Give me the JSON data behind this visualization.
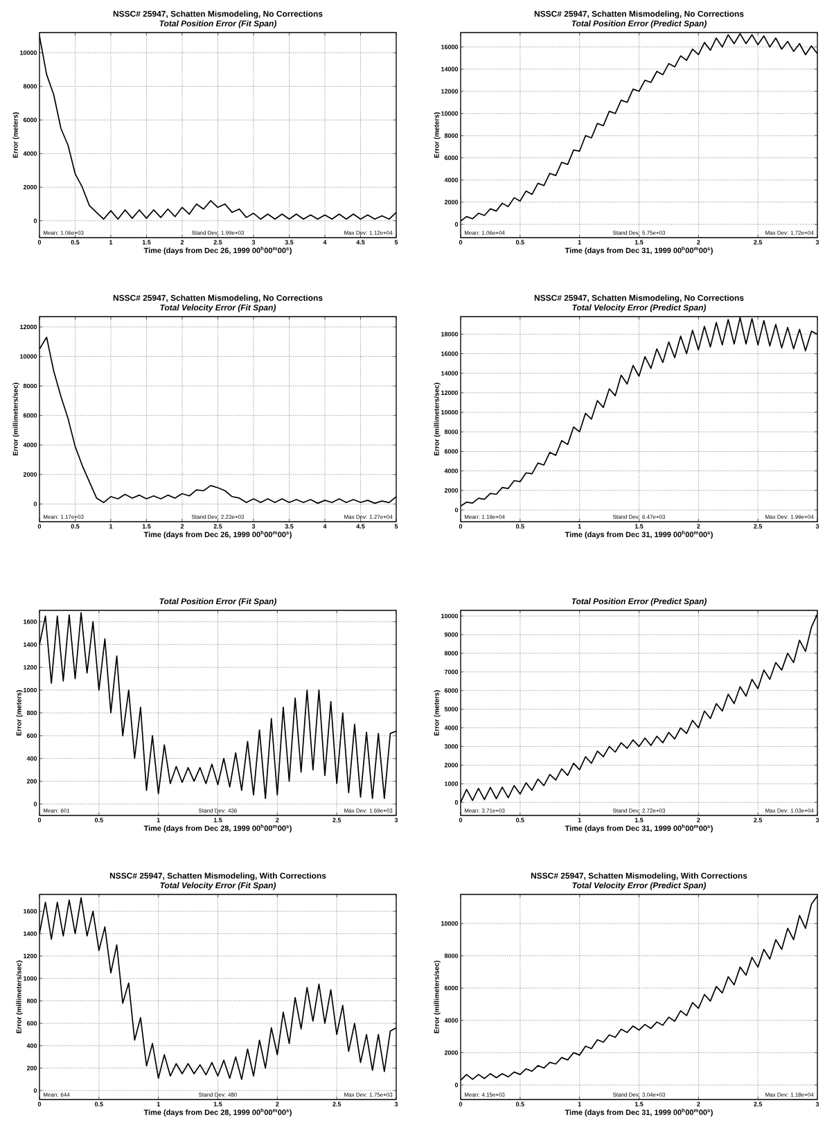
{
  "chart_data": [
    {
      "type": "line",
      "title": "NSSC# 25947, Schatten Mismodeling, No Corrections",
      "subtitle": "Total Position Error (Fit Span)",
      "xlabel": "Time (days from Dec 26, 1999  00$^{h}$00$^{m}$00$^{s}$)",
      "ylabel": "Error (meters)",
      "xlim": [
        0,
        5
      ],
      "ylim": [
        -1000,
        11200
      ],
      "xticks": [
        0,
        0.5,
        1,
        1.5,
        2,
        2.5,
        3,
        3.5,
        4,
        4.5,
        5
      ],
      "yticks": [
        0,
        2000,
        4000,
        6000,
        8000,
        10000
      ],
      "grid": true,
      "color": "#000000",
      "annotations": [
        "Mean: 1.06e+03",
        "Stand Dev: 1.99e+03",
        "Max Dev: 1.12e+04"
      ],
      "x": [
        0,
        0.1,
        0.2,
        0.3,
        0.4,
        0.5,
        0.6,
        0.7,
        0.8,
        0.9,
        1,
        1.1,
        1.2,
        1.3,
        1.4,
        1.5,
        1.6,
        1.7,
        1.8,
        1.9,
        2,
        2.1,
        2.2,
        2.3,
        2.4,
        2.5,
        2.6,
        2.7,
        2.8,
        2.9,
        3,
        3.1,
        3.2,
        3.3,
        3.4,
        3.5,
        3.6,
        3.7,
        3.8,
        3.9,
        4,
        4.1,
        4.2,
        4.3,
        4.4,
        4.5,
        4.6,
        4.7,
        4.8,
        4.9,
        5
      ],
      "values": [
        11000,
        8700,
        7500,
        5500,
        4500,
        2800,
        2000,
        900,
        500,
        100,
        600,
        100,
        650,
        150,
        650,
        150,
        650,
        200,
        700,
        250,
        800,
        400,
        1000,
        700,
        1200,
        800,
        1000,
        500,
        700,
        200,
        450,
        100,
        400,
        100,
        400,
        100,
        400,
        100,
        350,
        100,
        350,
        100,
        400,
        100,
        400,
        100,
        350,
        100,
        300,
        100,
        500
      ]
    },
    {
      "type": "line",
      "title": "NSSC# 25947, Schatten Mismodeling, No Corrections",
      "subtitle": "Total Position Error (Predict Span)",
      "xlabel": "Time (days from Dec 31, 1999  00$^{h}$00$^{m}$00$^{s}$)",
      "ylabel": "Error (meters)",
      "xlim": [
        0,
        3
      ],
      "ylim": [
        -1200,
        17300
      ],
      "xticks": [
        0,
        0.5,
        1,
        1.5,
        2,
        2.5,
        3
      ],
      "yticks": [
        0,
        2000,
        4000,
        6000,
        8000,
        10000,
        12000,
        14000,
        16000
      ],
      "grid": true,
      "color": "#000000",
      "annotations": [
        "Mean: 1.06e+04",
        "Stand Dev: 5.75e+03",
        "Max Dev: 1.72e+04"
      ],
      "x": [
        0,
        0.05,
        0.1,
        0.15,
        0.2,
        0.25,
        0.3,
        0.35,
        0.4,
        0.45,
        0.5,
        0.55,
        0.6,
        0.65,
        0.7,
        0.75,
        0.8,
        0.85,
        0.9,
        0.95,
        1,
        1.05,
        1.1,
        1.15,
        1.2,
        1.25,
        1.3,
        1.35,
        1.4,
        1.45,
        1.5,
        1.55,
        1.6,
        1.65,
        1.7,
        1.75,
        1.8,
        1.85,
        1.9,
        1.95,
        2,
        2.05,
        2.1,
        2.15,
        2.2,
        2.25,
        2.3,
        2.35,
        2.4,
        2.45,
        2.5,
        2.55,
        2.6,
        2.65,
        2.7,
        2.75,
        2.8,
        2.85,
        2.9,
        2.95,
        3
      ],
      "values": [
        300,
        700,
        500,
        1000,
        800,
        1400,
        1200,
        1900,
        1600,
        2400,
        2100,
        3000,
        2700,
        3700,
        3500,
        4600,
        4400,
        5600,
        5400,
        6700,
        6600,
        8000,
        7800,
        9100,
        8900,
        10200,
        10000,
        11200,
        11000,
        12200,
        12000,
        13000,
        12800,
        13800,
        13500,
        14500,
        14200,
        15200,
        14800,
        15800,
        15300,
        16400,
        15700,
        16800,
        16000,
        17100,
        16300,
        17200,
        16300,
        17100,
        16200,
        17000,
        16000,
        16800,
        15800,
        16500,
        15600,
        16300,
        15300,
        16100,
        15400
      ]
    },
    {
      "type": "line",
      "title": "NSSC# 25947, Schatten Mismodeling, No Corrections",
      "subtitle": "Total Velocity Error (Fit Span)",
      "xlabel": "Time (days from Dec 26, 1999  00$^{h}$00$^{m}$00$^{s}$)",
      "ylabel": "Error (millimeters/sec)",
      "xlim": [
        0,
        5
      ],
      "ylim": [
        -1200,
        12700
      ],
      "xticks": [
        0,
        0.5,
        1,
        1.5,
        2,
        2.5,
        3,
        3.5,
        4,
        4.5,
        5
      ],
      "yticks": [
        0,
        2000,
        4000,
        6000,
        8000,
        10000,
        12000
      ],
      "grid": true,
      "color": "#000000",
      "annotations": [
        "Mean: 1.17e+03",
        "Stand Dev: 2.23e+03",
        "Max Dev: 1.27e+04"
      ],
      "x": [
        0,
        0.1,
        0.2,
        0.3,
        0.4,
        0.5,
        0.6,
        0.7,
        0.8,
        0.9,
        1,
        1.1,
        1.2,
        1.3,
        1.4,
        1.5,
        1.6,
        1.7,
        1.8,
        1.9,
        2,
        2.1,
        2.2,
        2.3,
        2.4,
        2.5,
        2.6,
        2.7,
        2.8,
        2.9,
        3,
        3.1,
        3.2,
        3.3,
        3.4,
        3.5,
        3.6,
        3.7,
        3.8,
        3.9,
        4,
        4.1,
        4.2,
        4.3,
        4.4,
        4.5,
        4.6,
        4.7,
        4.8,
        4.9,
        5
      ],
      "values": [
        10500,
        11300,
        9000,
        7300,
        5800,
        3900,
        2600,
        1500,
        400,
        100,
        500,
        350,
        650,
        400,
        600,
        350,
        550,
        350,
        600,
        400,
        700,
        550,
        950,
        900,
        1250,
        1100,
        900,
        500,
        400,
        100,
        350,
        100,
        350,
        100,
        350,
        100,
        300,
        100,
        300,
        50,
        250,
        100,
        350,
        100,
        300,
        100,
        250,
        50,
        200,
        100,
        500
      ]
    },
    {
      "type": "line",
      "title": "NSSC# 25947, Schatten Mismodeling, No Corrections",
      "subtitle": "Total Velocity Error (Predict Span)",
      "xlabel": "Time (days from Dec 31, 1999  00$^{h}$00$^{m}$00$^{s}$)",
      "ylabel": "Error (millimeters/sec)",
      "xlim": [
        0,
        3
      ],
      "ylim": [
        -1200,
        19800
      ],
      "xticks": [
        0,
        0.5,
        1,
        1.5,
        2,
        2.5,
        3
      ],
      "yticks": [
        0,
        2000,
        4000,
        6000,
        8000,
        10000,
        12000,
        14000,
        16000,
        18000
      ],
      "grid": true,
      "color": "#000000",
      "annotations": [
        "Mean: 1.19e+04",
        "Stand Dev: 6.47e+03",
        "Max Dev: 1.99e+04"
      ],
      "x": [
        0,
        0.05,
        0.1,
        0.15,
        0.2,
        0.25,
        0.3,
        0.35,
        0.4,
        0.45,
        0.5,
        0.55,
        0.6,
        0.65,
        0.7,
        0.75,
        0.8,
        0.85,
        0.9,
        0.95,
        1,
        1.05,
        1.1,
        1.15,
        1.2,
        1.25,
        1.3,
        1.35,
        1.4,
        1.45,
        1.5,
        1.55,
        1.6,
        1.65,
        1.7,
        1.75,
        1.8,
        1.85,
        1.9,
        1.95,
        2,
        2.05,
        2.1,
        2.15,
        2.2,
        2.25,
        2.3,
        2.35,
        2.4,
        2.45,
        2.5,
        2.55,
        2.6,
        2.65,
        2.7,
        2.75,
        2.8,
        2.85,
        2.9,
        2.95,
        3
      ],
      "values": [
        400,
        800,
        700,
        1200,
        1100,
        1700,
        1600,
        2300,
        2200,
        3000,
        2900,
        3800,
        3700,
        4800,
        4600,
        5900,
        5600,
        7100,
        6700,
        8500,
        8000,
        9900,
        9300,
        11200,
        10500,
        12400,
        11700,
        13800,
        12900,
        14800,
        13700,
        15700,
        14500,
        16500,
        15100,
        17200,
        15600,
        17800,
        16000,
        18400,
        16400,
        18800,
        16700,
        19200,
        16900,
        19500,
        17000,
        19700,
        17000,
        19600,
        16900,
        19400,
        16800,
        19000,
        16600,
        18700,
        16500,
        18500,
        16300,
        18300,
        18000
      ]
    },
    {
      "type": "line",
      "subtitle": "Total Position Error (Fit Span)",
      "xlabel": "Time (days from Dec 28, 1999  00$^{h}$00$^{m}$00$^{s}$)",
      "ylabel": "Error (meters)",
      "xlim": [
        0,
        3
      ],
      "ylim": [
        -100,
        1700
      ],
      "xticks": [
        0,
        0.5,
        1,
        1.5,
        2,
        2.5,
        3
      ],
      "yticks": [
        0,
        200,
        400,
        600,
        800,
        1000,
        1200,
        1400,
        1600
      ],
      "grid": true,
      "color": "#000000",
      "annotations": [
        "Mean: 601",
        "Stand Dev: 436",
        "Max Dev: 1.69e+03"
      ],
      "x": [
        0,
        0.05,
        0.1,
        0.15,
        0.2,
        0.25,
        0.3,
        0.35,
        0.4,
        0.45,
        0.5,
        0.55,
        0.6,
        0.65,
        0.7,
        0.75,
        0.8,
        0.85,
        0.9,
        0.95,
        1,
        1.05,
        1.1,
        1.15,
        1.2,
        1.25,
        1.3,
        1.35,
        1.4,
        1.45,
        1.5,
        1.55,
        1.6,
        1.65,
        1.7,
        1.75,
        1.8,
        1.85,
        1.9,
        1.95,
        2,
        2.05,
        2.1,
        2.15,
        2.2,
        2.25,
        2.3,
        2.35,
        2.4,
        2.45,
        2.5,
        2.55,
        2.6,
        2.65,
        2.7,
        2.75,
        2.8,
        2.85,
        2.9,
        2.95,
        3
      ],
      "values": [
        1400,
        1650,
        1060,
        1650,
        1080,
        1660,
        1100,
        1680,
        1150,
        1600,
        1000,
        1450,
        800,
        1300,
        600,
        1000,
        400,
        850,
        120,
        600,
        90,
        520,
        180,
        330,
        190,
        320,
        200,
        320,
        180,
        350,
        170,
        400,
        150,
        450,
        120,
        550,
        80,
        650,
        50,
        750,
        80,
        850,
        200,
        930,
        280,
        1000,
        300,
        1000,
        250,
        900,
        180,
        800,
        100,
        700,
        60,
        630,
        50,
        620,
        50,
        620,
        640
      ]
    },
    {
      "type": "line",
      "subtitle": "Total Position Error (Predict Span)",
      "xlabel": "Time (days from Dec 31, 1999  00$^{h}$00$^{m}$00$^{s}$)",
      "ylabel": "Error (meters)",
      "xlim": [
        0,
        3
      ],
      "ylim": [
        -700,
        10300
      ],
      "xticks": [
        0,
        0.5,
        1,
        1.5,
        2,
        2.5,
        3
      ],
      "yticks": [
        0,
        1000,
        2000,
        3000,
        4000,
        5000,
        6000,
        7000,
        8000,
        9000,
        10000
      ],
      "grid": true,
      "color": "#000000",
      "annotations": [
        "Mean: 3.71e+03",
        "Stand Dev: 2.72e+03",
        "Max Dev: 1.03e+04"
      ],
      "x": [
        0,
        0.05,
        0.1,
        0.15,
        0.2,
        0.25,
        0.3,
        0.35,
        0.4,
        0.45,
        0.5,
        0.55,
        0.6,
        0.65,
        0.7,
        0.75,
        0.8,
        0.85,
        0.9,
        0.95,
        1,
        1.05,
        1.1,
        1.15,
        1.2,
        1.25,
        1.3,
        1.35,
        1.4,
        1.45,
        1.5,
        1.55,
        1.6,
        1.65,
        1.7,
        1.75,
        1.8,
        1.85,
        1.9,
        1.95,
        2,
        2.05,
        2.1,
        2.15,
        2.2,
        2.25,
        2.3,
        2.35,
        2.4,
        2.45,
        2.5,
        2.55,
        2.6,
        2.65,
        2.7,
        2.75,
        2.8,
        2.85,
        2.9,
        2.95,
        3
      ],
      "values": [
        0,
        700,
        100,
        750,
        150,
        800,
        200,
        820,
        250,
        900,
        450,
        1050,
        650,
        1250,
        900,
        1500,
        1200,
        1800,
        1450,
        2100,
        1750,
        2450,
        2100,
        2750,
        2450,
        3000,
        2700,
        3200,
        2900,
        3350,
        3000,
        3450,
        3050,
        3550,
        3200,
        3750,
        3400,
        4000,
        3700,
        4400,
        4000,
        4900,
        4500,
        5300,
        4900,
        5800,
        5300,
        6200,
        5700,
        6600,
        6100,
        7100,
        6600,
        7500,
        7100,
        8000,
        7500,
        8700,
        8100,
        9400,
        10100
      ]
    },
    {
      "type": "line",
      "title": "NSSC# 25947, Schatten Mismodeling, With Corrections",
      "subtitle": "Total Velocity Error (Fit Span)",
      "xlabel": "Time (days from Dec 28, 1999  00$^{h}$00$^{m}$00$^{s}$)",
      "ylabel": "Error (millimeters/sec)",
      "xlim": [
        0,
        3
      ],
      "ylim": [
        -80,
        1750
      ],
      "xticks": [
        0,
        0.5,
        1,
        1.5,
        2,
        2.5,
        3
      ],
      "yticks": [
        0,
        200,
        400,
        600,
        800,
        1000,
        1200,
        1400,
        1600
      ],
      "grid": true,
      "color": "#000000",
      "annotations": [
        "Mean: 644",
        "Stand Dev: 480",
        "Max Dev: 1.75e+03"
      ],
      "x": [
        0,
        0.05,
        0.1,
        0.15,
        0.2,
        0.25,
        0.3,
        0.35,
        0.4,
        0.45,
        0.5,
        0.55,
        0.6,
        0.65,
        0.7,
        0.75,
        0.8,
        0.85,
        0.9,
        0.95,
        1,
        1.05,
        1.1,
        1.15,
        1.2,
        1.25,
        1.3,
        1.35,
        1.4,
        1.45,
        1.5,
        1.55,
        1.6,
        1.65,
        1.7,
        1.75,
        1.8,
        1.85,
        1.9,
        1.95,
        2,
        2.05,
        2.1,
        2.15,
        2.2,
        2.25,
        2.3,
        2.35,
        2.4,
        2.45,
        2.5,
        2.55,
        2.6,
        2.65,
        2.7,
        2.75,
        2.8,
        2.85,
        2.9,
        2.95,
        3
      ],
      "values": [
        1400,
        1680,
        1350,
        1680,
        1380,
        1700,
        1400,
        1720,
        1380,
        1600,
        1250,
        1460,
        1050,
        1300,
        780,
        960,
        450,
        650,
        220,
        420,
        110,
        320,
        130,
        240,
        150,
        240,
        150,
        230,
        140,
        250,
        130,
        270,
        110,
        300,
        100,
        370,
        130,
        450,
        200,
        560,
        320,
        700,
        420,
        830,
        550,
        920,
        620,
        950,
        600,
        900,
        500,
        760,
        350,
        600,
        250,
        500,
        180,
        500,
        170,
        530,
        560
      ]
    },
    {
      "type": "line",
      "title": "NSSC# 25947, Schatten Mismodeling, With Corrections",
      "subtitle": "Total Velocity Error (Predict Span)",
      "xlabel": "Time (days from Dec 31, 1999  00$^{h}$00$^{m}$00$^{s}$)",
      "ylabel": "Error (millimeters/sec)",
      "xlim": [
        0,
        3
      ],
      "ylim": [
        -900,
        11800
      ],
      "xticks": [
        0,
        0.5,
        1,
        1.5,
        2,
        2.5,
        3
      ],
      "yticks": [
        0,
        2000,
        4000,
        6000,
        8000,
        10000
      ],
      "grid": true,
      "color": "#000000",
      "annotations": [
        "Mean: 4.15e+03",
        "Stand Dev: 3.04e+03",
        "Max Dev: 1.18e+04"
      ],
      "x": [
        0,
        0.05,
        0.1,
        0.15,
        0.2,
        0.25,
        0.3,
        0.35,
        0.4,
        0.45,
        0.5,
        0.55,
        0.6,
        0.65,
        0.7,
        0.75,
        0.8,
        0.85,
        0.9,
        0.95,
        1,
        1.05,
        1.1,
        1.15,
        1.2,
        1.25,
        1.3,
        1.35,
        1.4,
        1.45,
        1.5,
        1.55,
        1.6,
        1.65,
        1.7,
        1.75,
        1.8,
        1.85,
        1.9,
        1.95,
        2,
        2.05,
        2.1,
        2.15,
        2.2,
        2.25,
        2.3,
        2.35,
        2.4,
        2.45,
        2.5,
        2.55,
        2.6,
        2.65,
        2.7,
        2.75,
        2.8,
        2.85,
        2.9,
        2.95,
        3
      ],
      "values": [
        300,
        650,
        350,
        650,
        400,
        700,
        450,
        700,
        500,
        800,
        650,
        1000,
        850,
        1200,
        1050,
        1400,
        1300,
        1700,
        1550,
        2000,
        1850,
        2400,
        2250,
        2800,
        2650,
        3100,
        2950,
        3450,
        3250,
        3650,
        3400,
        3750,
        3500,
        3900,
        3700,
        4200,
        3950,
        4600,
        4300,
        5100,
        4750,
        5600,
        5200,
        6100,
        5700,
        6700,
        6200,
        7300,
        6800,
        7900,
        7300,
        8400,
        7800,
        9000,
        8400,
        9700,
        9000,
        10500,
        9700,
        11200,
        11700
      ]
    }
  ]
}
